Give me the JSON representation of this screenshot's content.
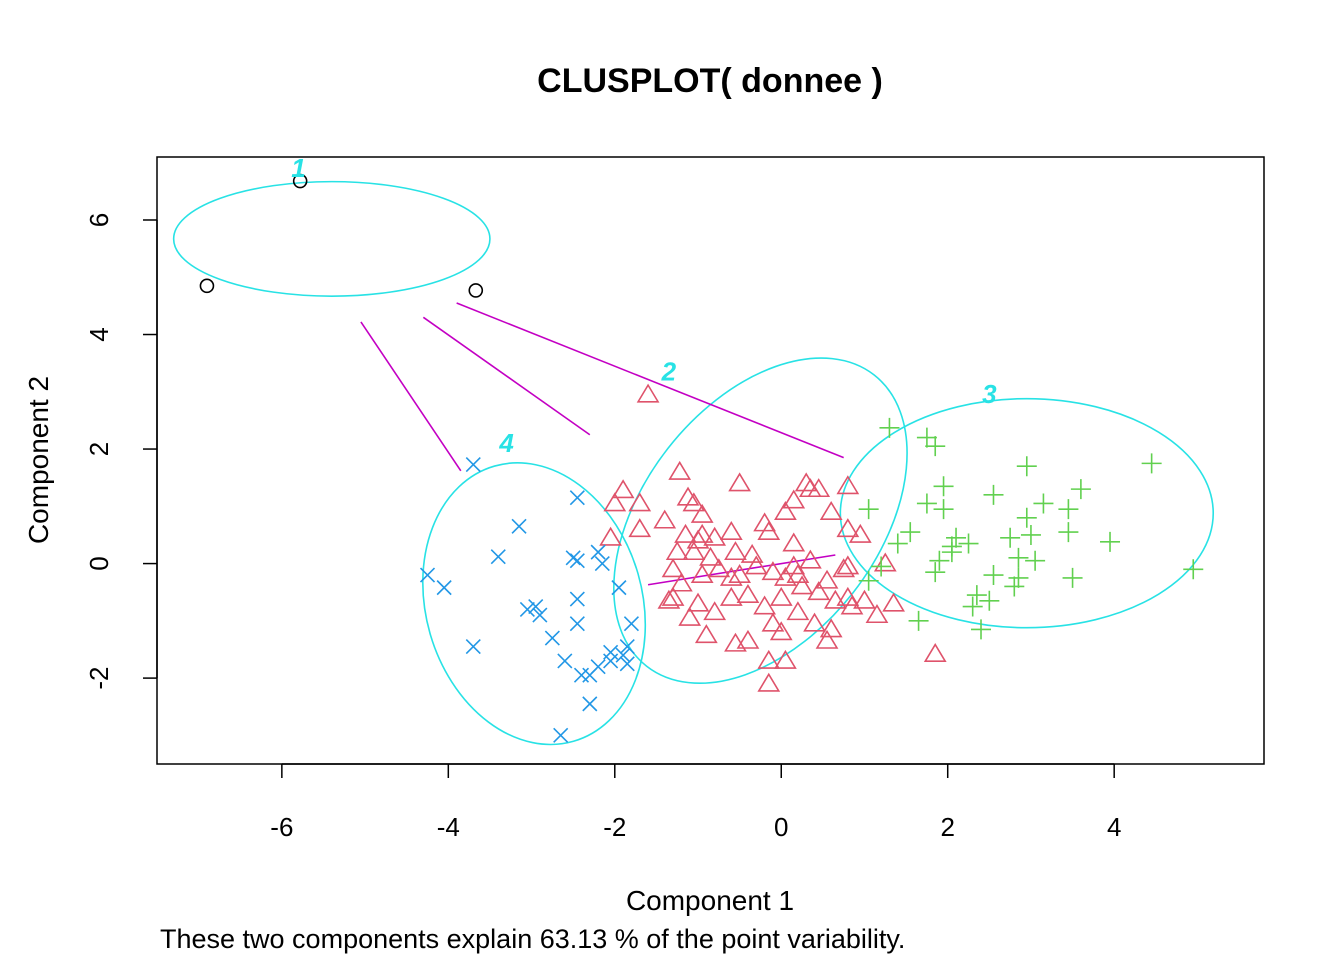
{
  "chart_data": {
    "type": "scatter",
    "title": "CLUSPLOT( donnee )",
    "xlabel": "Component 1",
    "ylabel": "Component 2",
    "subtitle": "These two components explain 63.13 % of the point variability.",
    "xlim": [
      -7.5,
      5.8
    ],
    "ylim": [
      -3.5,
      7.1
    ],
    "xticks": [
      -6,
      -4,
      -2,
      0,
      2,
      4
    ],
    "yticks": [
      -2,
      0,
      2,
      4,
      6
    ],
    "colors": {
      "ellipse": "#28e2e5",
      "connector": "#c300c3",
      "label": "#28e2e5"
    },
    "ellipses": [
      {
        "cx": -5.4,
        "cy": 5.67,
        "rx": 1.9,
        "ry": 1.0,
        "angle": 0
      },
      {
        "cx": -0.25,
        "cy": 0.75,
        "rx": 2.22,
        "ry": 2.05,
        "angle": -52
      },
      {
        "cx": 2.95,
        "cy": 0.88,
        "rx": 2.24,
        "ry": 2.0,
        "angle": 0
      },
      {
        "cx": -2.97,
        "cy": -0.7,
        "rx": 1.3,
        "ry": 2.5,
        "angle": -16
      }
    ],
    "cluster_labels": [
      {
        "text": "1",
        "x": -5.8,
        "y": 6.75
      },
      {
        "text": "2",
        "x": -1.35,
        "y": 3.2
      },
      {
        "text": "3",
        "x": 2.5,
        "y": 2.8
      },
      {
        "text": "4",
        "x": -3.3,
        "y": 1.95
      }
    ],
    "connectors": [
      {
        "x1": -5.05,
        "y1": 4.22,
        "x2": -3.85,
        "y2": 1.62
      },
      {
        "x1": -4.3,
        "y1": 4.3,
        "x2": -2.3,
        "y2": 2.25
      },
      {
        "x1": -3.9,
        "y1": 4.55,
        "x2": 0.75,
        "y2": 1.85
      },
      {
        "x1": -1.6,
        "y1": -0.37,
        "x2": 0.65,
        "y2": 0.15
      }
    ],
    "series": [
      {
        "name": "1",
        "marker": "circle",
        "color": "#000000",
        "points": [
          [
            -5.78,
            6.68
          ],
          [
            -6.9,
            4.85
          ],
          [
            -3.67,
            4.77
          ]
        ]
      },
      {
        "name": "2",
        "marker": "triangle",
        "color": "#df536b",
        "points": [
          [
            -1.6,
            2.95
          ],
          [
            -1.22,
            1.6
          ],
          [
            -0.5,
            1.4
          ],
          [
            -1.9,
            1.28
          ],
          [
            -1.7,
            1.05
          ],
          [
            -2.0,
            1.05
          ],
          [
            -1.12,
            1.15
          ],
          [
            -1.05,
            1.05
          ],
          [
            -0.95,
            0.85
          ],
          [
            -1.4,
            0.75
          ],
          [
            -1.7,
            0.6
          ],
          [
            -1.15,
            0.5
          ],
          [
            -1.0,
            0.4
          ],
          [
            -0.8,
            0.45
          ],
          [
            -0.6,
            0.55
          ],
          [
            -0.2,
            0.7
          ],
          [
            -0.15,
            0.55
          ],
          [
            0.05,
            0.9
          ],
          [
            0.15,
            1.1
          ],
          [
            0.3,
            1.4
          ],
          [
            0.45,
            1.3
          ],
          [
            0.6,
            0.9
          ],
          [
            0.8,
            1.35
          ],
          [
            -2.05,
            0.45
          ],
          [
            -1.25,
            0.2
          ],
          [
            -1.05,
            0.2
          ],
          [
            -0.85,
            0.1
          ],
          [
            -0.55,
            0.2
          ],
          [
            -0.35,
            0.15
          ],
          [
            0.15,
            0.35
          ],
          [
            -1.3,
            -0.1
          ],
          [
            -1.2,
            -0.35
          ],
          [
            -0.95,
            -0.2
          ],
          [
            -0.75,
            -0.1
          ],
          [
            -0.5,
            -0.2
          ],
          [
            -0.3,
            -0.05
          ],
          [
            -0.1,
            -0.15
          ],
          [
            0.05,
            -0.25
          ],
          [
            0.2,
            -0.2
          ],
          [
            0.35,
            0.05
          ],
          [
            0.55,
            -0.3
          ],
          [
            0.75,
            -0.1
          ],
          [
            0.8,
            -0.05
          ],
          [
            0.95,
            0.5
          ],
          [
            0.8,
            0.6
          ],
          [
            1.25,
            0.0
          ],
          [
            -1.3,
            -0.6
          ],
          [
            -1.0,
            -0.7
          ],
          [
            -0.8,
            -0.85
          ],
          [
            -0.6,
            -0.6
          ],
          [
            -0.4,
            -0.55
          ],
          [
            -0.2,
            -0.75
          ],
          [
            0.0,
            -0.6
          ],
          [
            0.25,
            -0.4
          ],
          [
            0.45,
            -0.5
          ],
          [
            0.65,
            -0.65
          ],
          [
            0.85,
            -0.75
          ],
          [
            1.0,
            -0.65
          ],
          [
            1.15,
            -0.9
          ],
          [
            1.35,
            -0.7
          ],
          [
            -1.35,
            -0.65
          ],
          [
            -1.1,
            -0.95
          ],
          [
            -0.9,
            -1.25
          ],
          [
            -0.55,
            -1.4
          ],
          [
            -0.4,
            -1.35
          ],
          [
            -0.1,
            -1.05
          ],
          [
            0.0,
            -1.2
          ],
          [
            0.2,
            -0.85
          ],
          [
            0.4,
            -1.05
          ],
          [
            0.6,
            -1.15
          ],
          [
            -0.15,
            -1.7
          ],
          [
            0.05,
            -1.7
          ],
          [
            -0.15,
            -2.1
          ],
          [
            0.55,
            -1.35
          ],
          [
            0.8,
            -0.6
          ],
          [
            1.85,
            -1.58
          ],
          [
            0.35,
            1.3
          ],
          [
            -0.95,
            0.5
          ],
          [
            -0.6,
            -0.25
          ],
          [
            0.15,
            -0.05
          ]
        ]
      },
      {
        "name": "3",
        "marker": "plus",
        "color": "#61d04f",
        "points": [
          [
            1.3,
            2.37
          ],
          [
            1.75,
            2.2
          ],
          [
            1.85,
            2.05
          ],
          [
            2.95,
            1.7
          ],
          [
            4.45,
            1.75
          ],
          [
            1.95,
            1.35
          ],
          [
            2.55,
            1.2
          ],
          [
            3.6,
            1.3
          ],
          [
            1.05,
            0.95
          ],
          [
            1.75,
            1.05
          ],
          [
            1.95,
            0.95
          ],
          [
            2.95,
            0.8
          ],
          [
            3.15,
            1.05
          ],
          [
            3.45,
            0.95
          ],
          [
            1.55,
            0.55
          ],
          [
            2.1,
            0.45
          ],
          [
            2.25,
            0.35
          ],
          [
            2.75,
            0.45
          ],
          [
            3.0,
            0.5
          ],
          [
            3.95,
            0.38
          ],
          [
            1.4,
            0.35
          ],
          [
            2.05,
            0.3
          ],
          [
            1.9,
            0.05
          ],
          [
            2.85,
            0.1
          ],
          [
            3.05,
            0.05
          ],
          [
            1.2,
            -0.05
          ],
          [
            1.85,
            -0.15
          ],
          [
            2.55,
            -0.2
          ],
          [
            2.85,
            -0.25
          ],
          [
            3.5,
            -0.25
          ],
          [
            4.95,
            -0.1
          ],
          [
            2.35,
            -0.55
          ],
          [
            2.5,
            -0.65
          ],
          [
            2.8,
            -0.4
          ],
          [
            2.3,
            -0.75
          ],
          [
            1.65,
            -1.0
          ],
          [
            2.4,
            -1.15
          ],
          [
            1.05,
            -0.3
          ],
          [
            3.45,
            0.55
          ],
          [
            2.05,
            0.2
          ]
        ]
      },
      {
        "name": "4",
        "marker": "x",
        "color": "#2297e6",
        "points": [
          [
            -3.7,
            1.73
          ],
          [
            -2.45,
            1.15
          ],
          [
            -3.15,
            0.65
          ],
          [
            -3.4,
            0.12
          ],
          [
            -2.45,
            0.05
          ],
          [
            -2.2,
            0.2
          ],
          [
            -2.5,
            0.1
          ],
          [
            -2.15,
            0.0
          ],
          [
            -4.25,
            -0.2
          ],
          [
            -4.05,
            -0.42
          ],
          [
            -1.95,
            -0.42
          ],
          [
            -2.45,
            -0.62
          ],
          [
            -3.05,
            -0.8
          ],
          [
            -2.9,
            -0.9
          ],
          [
            -2.95,
            -0.75
          ],
          [
            -1.8,
            -1.05
          ],
          [
            -2.75,
            -1.3
          ],
          [
            -2.45,
            -1.05
          ],
          [
            -3.7,
            -1.45
          ],
          [
            -2.05,
            -1.55
          ],
          [
            -1.85,
            -1.45
          ],
          [
            -2.6,
            -1.7
          ],
          [
            -2.2,
            -1.8
          ],
          [
            -2.3,
            -1.95
          ],
          [
            -2.05,
            -1.7
          ],
          [
            -1.85,
            -1.75
          ],
          [
            -2.4,
            -1.95
          ],
          [
            -2.3,
            -2.45
          ],
          [
            -2.65,
            -3.0
          ],
          [
            -1.9,
            -1.6
          ]
        ]
      }
    ]
  }
}
